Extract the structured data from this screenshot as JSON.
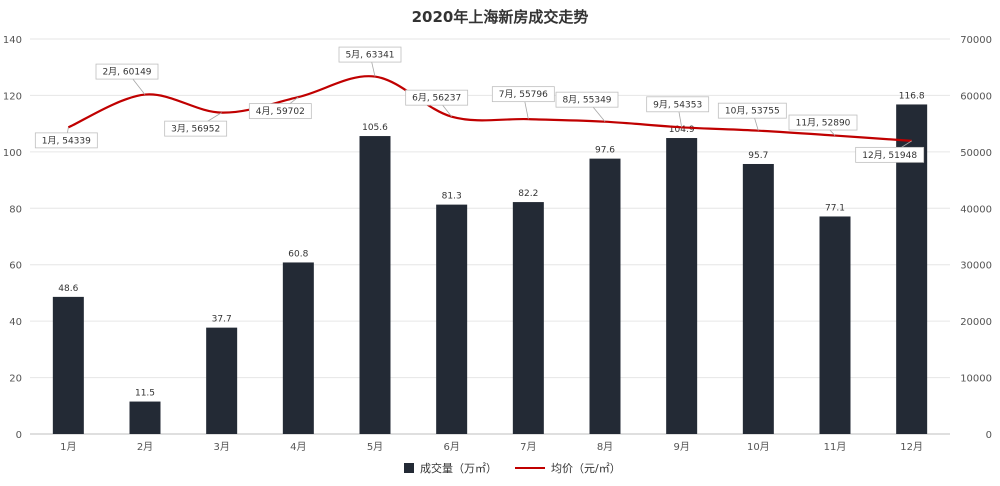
{
  "chart_data": {
    "type": "bar",
    "title": "2020年上海新房成交走势",
    "categories": [
      "1月",
      "2月",
      "3月",
      "4月",
      "5月",
      "6月",
      "7月",
      "8月",
      "9月",
      "10月",
      "11月",
      "12月"
    ],
    "series": [
      {
        "name": "成交量（万㎡）",
        "type": "bar",
        "axis": "left",
        "color": "#232a35",
        "values": [
          48.6,
          11.5,
          37.7,
          60.8,
          105.6,
          81.3,
          82.2,
          97.6,
          104.9,
          95.7,
          77.1,
          116.8
        ],
        "labels": [
          "48.6",
          "11.5",
          "37.7",
          "60.8",
          "105.6",
          "81.3",
          "82.2",
          "97.6",
          "104.9",
          "95.7",
          "77.1",
          "116.8"
        ]
      },
      {
        "name": "均价（元/㎡）",
        "type": "line",
        "axis": "right",
        "color": "#c00000",
        "smooth": true,
        "values": [
          54339,
          60149,
          56952,
          59702,
          63341,
          56237,
          55796,
          55349,
          54353,
          53755,
          52890,
          51948
        ],
        "labels": [
          "1月, 54339",
          "2月, 60149",
          "3月, 56952",
          "4月, 59702",
          "5月, 63341",
          "6月, 56237",
          "7月, 55796",
          "8月, 55349",
          "9月, 54353",
          "10月, 53755",
          "11月, 52890",
          "12月, 51948"
        ]
      }
    ],
    "y_left": {
      "lim": [
        0,
        140
      ],
      "ticks": [
        "0",
        "20",
        "40",
        "60",
        "80",
        "100",
        "120",
        "140"
      ]
    },
    "y_right": {
      "lim": [
        0,
        70000
      ],
      "ticks": [
        "0",
        "10000",
        "20000",
        "30000",
        "40000",
        "50000",
        "60000",
        "70000"
      ]
    },
    "grid": true,
    "legend_position": "bottom-center"
  }
}
